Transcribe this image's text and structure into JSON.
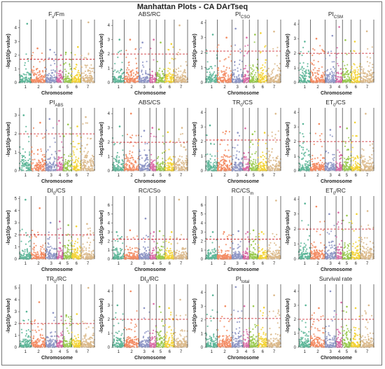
{
  "figure_title": "Manhattan Plots - CA DArTseq",
  "colors": {
    "chromosomes": [
      "#5ab597",
      "#f38a60",
      "#8d95c5",
      "#dc6aa7",
      "#98c94b",
      "#f3d231",
      "#dbb98a"
    ],
    "threshold": "#c8141e",
    "chromosome_border": "#333333",
    "background": "#ffffff"
  },
  "chart_data": [
    {
      "type": "scatter",
      "title": "Fv/Fm",
      "xlabel": "Chromosome",
      "ylabel": "-log10(p-value)",
      "x_ticks": [
        "1",
        "2",
        "3",
        "4",
        "5",
        "6",
        "7"
      ],
      "y_ticks": [
        "0",
        "1",
        "2",
        "3",
        "4"
      ],
      "ylim": [
        0,
        4.6
      ],
      "threshold": 1.7,
      "peak_values": [
        4.3,
        2.5,
        2.4,
        2.0,
        2.2,
        2.6,
        4.4
      ]
    },
    {
      "type": "scatter",
      "title": "ABS/RC",
      "xlabel": "Chromosome",
      "ylabel": "-log10(p-value)",
      "x_ticks": [
        "1",
        "2",
        "3",
        "4",
        "5",
        "6",
        "7"
      ],
      "y_ticks": [
        "0",
        "1",
        "2",
        "3",
        "4"
      ],
      "ylim": [
        0,
        4.4
      ],
      "threshold": 2.0,
      "peak_values": [
        3.0,
        3.0,
        2.8,
        3.0,
        2.8,
        2.7,
        4.0
      ]
    },
    {
      "type": "scatter",
      "title": "PI(CSO)",
      "xlabel": "Chromosome",
      "ylabel": "-log10(p-value)",
      "x_ticks": [
        "1",
        "2",
        "3",
        "4",
        "5",
        "6",
        "7"
      ],
      "y_ticks": [
        "0",
        "1",
        "2",
        "3",
        "4"
      ],
      "ylim": [
        0,
        4.2
      ],
      "threshold": 2.1,
      "peak_values": [
        3.2,
        3.0,
        3.6,
        3.0,
        3.2,
        3.3,
        3.4
      ]
    },
    {
      "type": "scatter",
      "title": "PI(CSM)",
      "xlabel": "Chromosome",
      "ylabel": "-log10(p-value)",
      "x_ticks": [
        "1",
        "2",
        "3",
        "4",
        "5",
        "6",
        "7"
      ],
      "y_ticks": [
        "0",
        "1",
        "2",
        "3",
        "4"
      ],
      "ylim": [
        0,
        4.3
      ],
      "threshold": 2.0,
      "peak_values": [
        2.8,
        3.0,
        3.2,
        3.8,
        2.9,
        2.8,
        3.5
      ]
    },
    {
      "type": "scatter",
      "title": "PI(ABS)",
      "xlabel": "Chromosome",
      "ylabel": "-log10(p-value)",
      "x_ticks": [
        "1",
        "2",
        "3",
        "4",
        "5",
        "6",
        "7"
      ],
      "y_ticks": [
        "0",
        "1",
        "2",
        "3"
      ],
      "ylim": [
        0,
        3.4
      ],
      "threshold": 2.0,
      "peak_values": [
        3.0,
        2.6,
        2.8,
        2.7,
        2.5,
        2.4,
        2.9
      ]
    },
    {
      "type": "scatter",
      "title": "ABS/CS",
      "xlabel": "Chromosome",
      "ylabel": "-log10(p-value)",
      "x_ticks": [
        "1",
        "2",
        "3",
        "4",
        "5",
        "6",
        "7"
      ],
      "y_ticks": [
        "0",
        "1",
        "2",
        "3",
        "4"
      ],
      "ylim": [
        0,
        4.4
      ],
      "threshold": 2.0,
      "peak_values": [
        3.1,
        4.0,
        2.8,
        3.0,
        2.9,
        2.7,
        3.0
      ]
    },
    {
      "type": "scatter",
      "title": "TR0/CS",
      "xlabel": "Chromosome",
      "ylabel": "-log10(p-value)",
      "x_ticks": [
        "1",
        "2",
        "3",
        "4",
        "5",
        "6",
        "7"
      ],
      "y_ticks": [
        "0",
        "1",
        "2",
        "3",
        "4"
      ],
      "ylim": [
        0,
        4.3
      ],
      "threshold": 2.1,
      "peak_values": [
        3.1,
        2.7,
        2.6,
        2.9,
        2.5,
        2.6,
        3.9
      ]
    },
    {
      "type": "scatter",
      "title": "ET0/CS",
      "xlabel": "Chromosome",
      "ylabel": "-log10(p-value)",
      "x_ticks": [
        "1",
        "2",
        "3",
        "4",
        "5",
        "6",
        "7"
      ],
      "y_ticks": [
        "0",
        "1",
        "2",
        "3",
        "4"
      ],
      "ylim": [
        0,
        4.3
      ],
      "threshold": 2.0,
      "peak_values": [
        3.2,
        3.2,
        2.8,
        3.0,
        2.9,
        3.3,
        3.9
      ]
    },
    {
      "type": "scatter",
      "title": "DI0/CS",
      "xlabel": "Chromosome",
      "ylabel": "-log10(p-value)",
      "x_ticks": [
        "1",
        "2",
        "3",
        "4",
        "5",
        "6",
        "7"
      ],
      "y_ticks": [
        "0",
        "1",
        "2",
        "3",
        "4",
        "5"
      ],
      "ylim": [
        0,
        5.2
      ],
      "threshold": 2.0,
      "peak_values": [
        4.9,
        4.2,
        3.0,
        3.1,
        2.8,
        2.7,
        2.9
      ]
    },
    {
      "type": "scatter",
      "title": "RC/CSo",
      "xlabel": "Chromosome",
      "ylabel": "-log10(p-value)",
      "x_ticks": [
        "1",
        "2",
        "3",
        "4",
        "5",
        "6",
        "7"
      ],
      "y_ticks": [
        "0",
        "1",
        "2",
        "3",
        "4",
        "5",
        "6"
      ],
      "ylim": [
        0,
        7.0
      ],
      "threshold": 2.2,
      "peak_values": [
        3.0,
        3.2,
        4.5,
        3.0,
        3.1,
        3.0,
        6.6
      ]
    },
    {
      "type": "scatter",
      "title": "RC/CSm",
      "xlabel": "Chromosome",
      "ylabel": "-log10(p-value)",
      "x_ticks": [
        "1",
        "2",
        "3",
        "4",
        "5",
        "6",
        "7"
      ],
      "y_ticks": [
        "0",
        "1",
        "2",
        "3",
        "4",
        "5",
        "6"
      ],
      "ylim": [
        0,
        7.0
      ],
      "threshold": 2.2,
      "peak_values": [
        3.0,
        3.0,
        3.1,
        3.0,
        3.2,
        3.0,
        6.5
      ]
    },
    {
      "type": "scatter",
      "title": "ET0/RC",
      "xlabel": "Chromosome",
      "ylabel": "-log10(p-value)",
      "x_ticks": [
        "1",
        "2",
        "3",
        "4",
        "5",
        "6",
        "7"
      ],
      "y_ticks": [
        "0",
        "1",
        "2",
        "3",
        "4"
      ],
      "ylim": [
        0,
        4.2
      ],
      "threshold": 2.0,
      "peak_values": [
        3.7,
        3.5,
        3.0,
        3.1,
        2.9,
        3.0,
        3.2
      ]
    },
    {
      "type": "scatter",
      "title": "TR0/RC",
      "xlabel": "Chromosome",
      "ylabel": "-log10(p-value)",
      "x_ticks": [
        "1",
        "2",
        "3",
        "4",
        "5",
        "6",
        "7"
      ],
      "y_ticks": [
        "0",
        "1",
        "2",
        "3",
        "4",
        "5"
      ],
      "ylim": [
        0,
        5.3
      ],
      "threshold": 2.0,
      "peak_values": [
        3.0,
        3.8,
        2.9,
        2.6,
        2.7,
        2.8,
        5.0
      ]
    },
    {
      "type": "scatter",
      "title": "DI0/RC",
      "xlabel": "Chromosome",
      "ylabel": "-log10(p-value)",
      "x_ticks": [
        "1",
        "2",
        "3",
        "4",
        "5",
        "6",
        "7"
      ],
      "y_ticks": [
        "0",
        "1",
        "2",
        "3",
        "4"
      ],
      "ylim": [
        0,
        4.5
      ],
      "threshold": 2.0,
      "peak_values": [
        3.0,
        4.0,
        2.8,
        3.1,
        2.9,
        2.8,
        3.4
      ]
    },
    {
      "type": "scatter",
      "title": "PI(total)",
      "xlabel": "Chromosome",
      "ylabel": "-log10(p-value)",
      "x_ticks": [
        "1",
        "2",
        "3",
        "4",
        "5",
        "6",
        "7"
      ],
      "y_ticks": [
        "0",
        "1",
        "2",
        "3",
        "4"
      ],
      "ylim": [
        0,
        4.6
      ],
      "threshold": 2.1,
      "peak_values": [
        3.8,
        3.0,
        4.4,
        3.0,
        3.0,
        2.9,
        3.8
      ]
    },
    {
      "type": "scatter",
      "title": "Survival rate",
      "xlabel": "Chromosome",
      "ylabel": "-log10(p-value)",
      "x_ticks": [
        "1",
        "2",
        "3",
        "4",
        "5",
        "6",
        "7"
      ],
      "y_ticks": [
        "0",
        "1",
        "2",
        "3",
        "4"
      ],
      "ylim": [
        0,
        4.5
      ],
      "threshold": 2.0,
      "peak_values": [
        3.0,
        2.8,
        4.0,
        3.2,
        2.9,
        2.8,
        3.0
      ]
    }
  ]
}
